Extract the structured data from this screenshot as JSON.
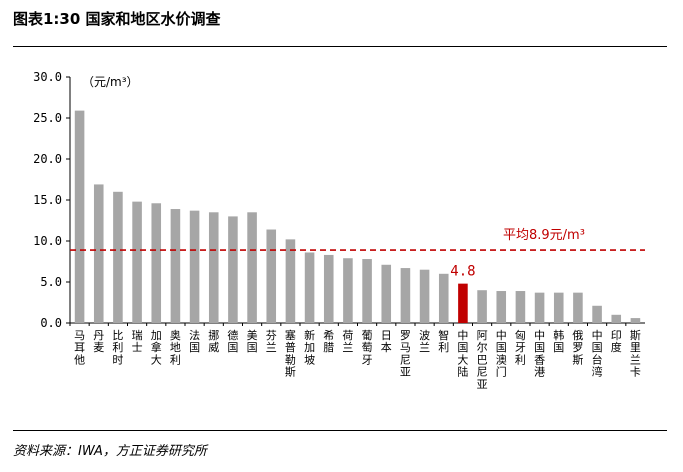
{
  "header": {
    "title": "图表1:30 国家和地区水价调查"
  },
  "footer": {
    "source": "资料来源：IWA，方正证券研究所"
  },
  "chart_data": {
    "type": "bar",
    "unit_label": "（元/m³）",
    "ylim": [
      0,
      30
    ],
    "yticks": [
      "0.0",
      "5.0",
      "10.0",
      "15.0",
      "20.0",
      "25.0",
      "30.0"
    ],
    "categories": [
      "马耳他",
      "丹麦",
      "比利时",
      "瑞士",
      "加拿大",
      "奥地利",
      "法国",
      "挪威",
      "德国",
      "美国",
      "芬兰",
      "塞普勒斯",
      "新加坡",
      "希腊",
      "荷兰",
      "葡萄牙",
      "日本",
      "罗马尼亚",
      "波兰",
      "智利",
      "中国大陆",
      "阿尔巴尼亚",
      "中国澳门",
      "匈牙利",
      "中国香港",
      "韩国",
      "俄罗斯",
      "中国台湾",
      "印度",
      "斯里兰卡"
    ],
    "values": [
      25.9,
      16.9,
      16.0,
      14.8,
      14.6,
      13.9,
      13.7,
      13.5,
      13.0,
      13.5,
      11.4,
      10.2,
      8.6,
      8.3,
      7.9,
      7.8,
      7.1,
      6.7,
      6.5,
      6.0,
      4.8,
      4.0,
      3.9,
      3.9,
      3.7,
      3.7,
      3.7,
      2.1,
      1.0,
      0.6
    ],
    "highlight": {
      "category": "中国大陆",
      "label": "4.8",
      "color": "#c00000"
    },
    "bar_color": "#a6a6a6",
    "average": {
      "value": 8.9,
      "label": "平均8.9元/m³",
      "color": "#c00000"
    },
    "grid": false,
    "legend": "none"
  }
}
